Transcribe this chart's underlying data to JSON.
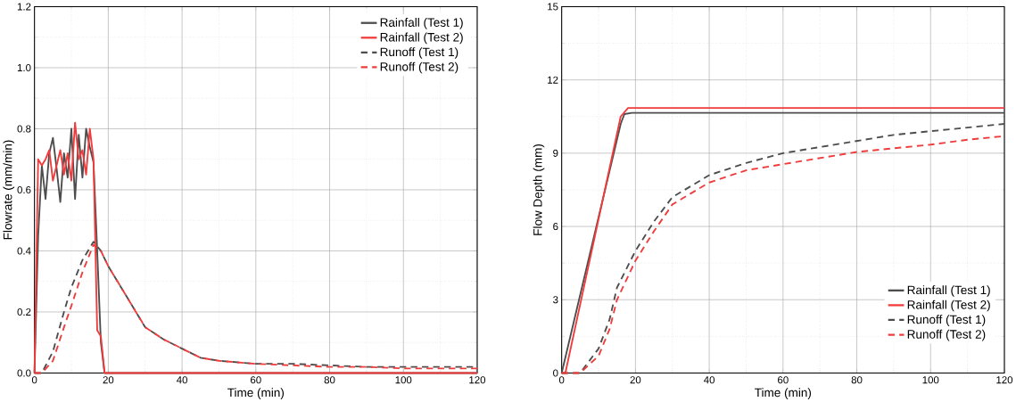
{
  "chart_data": [
    {
      "type": "line",
      "xlabel": "Time (min)",
      "ylabel": "Flowrate (mm/min)",
      "xlim": [
        0,
        120
      ],
      "ylim": [
        0,
        1.2
      ],
      "xticks": [
        0,
        20,
        40,
        60,
        80,
        100,
        120
      ],
      "yticks": [
        {
          "value": 0,
          "label": "0.0"
        },
        0.2,
        0.4,
        0.6,
        0.8,
        {
          "value": 1,
          "label": "1.0"
        },
        1.2
      ],
      "grid": true,
      "legend": "top right",
      "series": [
        {
          "name": "Rainfall (Test 1)",
          "color": "#4d4d4d",
          "line_style": "solid",
          "x": [
            0,
            1,
            2,
            3,
            4,
            5,
            6,
            7,
            8,
            9,
            10,
            11,
            12,
            13,
            14,
            15,
            16,
            17,
            18,
            19,
            20,
            120
          ],
          "values": [
            0,
            0.45,
            0.68,
            0.57,
            0.72,
            0.77,
            0.67,
            0.56,
            0.72,
            0.64,
            0.8,
            0.57,
            0.78,
            0.64,
            0.8,
            0.74,
            0.69,
            0.4,
            0.1,
            0,
            0,
            0
          ]
        },
        {
          "name": "Rainfall (Test 2)",
          "color": "#f03c3c",
          "line_style": "solid",
          "x": [
            0,
            1,
            2,
            3,
            4,
            5,
            6,
            7,
            8,
            9,
            10,
            11,
            12,
            13,
            14,
            15,
            16,
            17,
            18,
            19,
            20,
            120
          ],
          "values": [
            0,
            0.7,
            0.68,
            0.7,
            0.73,
            0.63,
            0.68,
            0.73,
            0.65,
            0.72,
            0.63,
            0.82,
            0.7,
            0.73,
            0.65,
            0.8,
            0.7,
            0.14,
            0.12,
            0,
            0,
            0
          ]
        },
        {
          "name": "Runoff (Test 1)",
          "color": "#4d4d4d",
          "line_style": "dashed",
          "x": [
            0,
            2,
            5,
            8,
            10,
            13,
            16,
            18,
            20,
            25,
            30,
            35,
            40,
            45,
            50,
            60,
            70,
            80,
            90,
            100,
            110,
            120
          ],
          "values": [
            0,
            0,
            0.07,
            0.2,
            0.28,
            0.37,
            0.43,
            0.4,
            0.35,
            0.25,
            0.15,
            0.11,
            0.08,
            0.05,
            0.04,
            0.03,
            0.03,
            0.025,
            0.02,
            0.02,
            0.02,
            0.02
          ]
        },
        {
          "name": "Runoff (Test 2)",
          "color": "#f03c3c",
          "line_style": "dashed",
          "x": [
            0,
            2,
            5,
            8,
            10,
            13,
            16,
            18,
            20,
            25,
            30,
            35,
            40,
            45,
            50,
            60,
            70,
            80,
            90,
            100,
            110,
            120
          ],
          "values": [
            0,
            0,
            0.04,
            0.15,
            0.22,
            0.33,
            0.42,
            0.4,
            0.35,
            0.25,
            0.15,
            0.11,
            0.08,
            0.05,
            0.04,
            0.03,
            0.025,
            0.02,
            0.02,
            0.015,
            0.015,
            0.015
          ]
        }
      ]
    },
    {
      "type": "line",
      "xlabel": "Time (min)",
      "ylabel": "Flow Depth (mm)",
      "xlim": [
        0,
        120
      ],
      "ylim": [
        0,
        15
      ],
      "xticks": [
        0,
        20,
        40,
        60,
        80,
        100,
        120
      ],
      "yticks": [
        0,
        3,
        6,
        9,
        12,
        15
      ],
      "grid": true,
      "legend": "bottom right",
      "series": [
        {
          "name": "Rainfall (Test 1)",
          "color": "#4d4d4d",
          "line_style": "solid",
          "x": [
            0,
            16,
            17,
            19,
            120
          ],
          "values": [
            0,
            10.2,
            10.6,
            10.65,
            10.65
          ]
        },
        {
          "name": "Rainfall (Test 2)",
          "color": "#f03c3c",
          "line_style": "solid",
          "x": [
            0,
            1,
            16,
            18,
            120
          ],
          "values": [
            0,
            0,
            10.5,
            10.85,
            10.85
          ]
        },
        {
          "name": "Runoff (Test 1)",
          "color": "#4d4d4d",
          "line_style": "dashed",
          "x": [
            0,
            5,
            10,
            13,
            15,
            20,
            25,
            30,
            40,
            50,
            60,
            70,
            80,
            90,
            100,
            110,
            120
          ],
          "values": [
            0,
            0,
            1.0,
            2.2,
            3.5,
            5.0,
            6.2,
            7.2,
            8.1,
            8.6,
            9.0,
            9.25,
            9.5,
            9.75,
            9.9,
            10.05,
            10.2
          ]
        },
        {
          "name": "Runoff (Test 2)",
          "color": "#f03c3c",
          "line_style": "dashed",
          "x": [
            0,
            5,
            10,
            13,
            15,
            20,
            25,
            30,
            40,
            50,
            60,
            70,
            80,
            90,
            100,
            110,
            120
          ],
          "values": [
            0,
            0,
            0.7,
            1.8,
            3.0,
            4.6,
            5.8,
            6.9,
            7.8,
            8.3,
            8.55,
            8.8,
            9.05,
            9.2,
            9.35,
            9.55,
            9.7
          ]
        }
      ]
    }
  ]
}
